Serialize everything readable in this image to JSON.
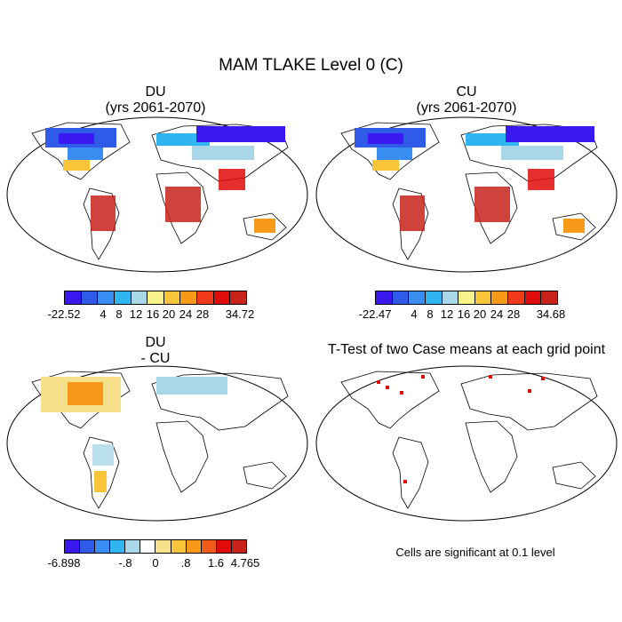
{
  "title": "MAM TLAKE Level 0 (C)",
  "panels": [
    {
      "id": "du",
      "title_line1": "DU",
      "title_line2": "(yrs 2061-2070)",
      "ticks": [
        "-22.52",
        "4",
        "8",
        "12",
        "16",
        "20",
        "24",
        "28",
        "34.72"
      ]
    },
    {
      "id": "cu",
      "title_line1": "CU",
      "title_line2": "(yrs 2061-2070)",
      "ticks": [
        "-22.47",
        "4",
        "8",
        "12",
        "16",
        "20",
        "24",
        "28",
        "34.68"
      ]
    },
    {
      "id": "diff",
      "title_line1": "DU",
      "title_line2": "- CU",
      "ticks": [
        "-6.898",
        "-.8",
        "0",
        ".8",
        "1.6",
        "4.765"
      ]
    },
    {
      "id": "ttest",
      "title_line1": "T-Test of two Case means at each grid point",
      "note": "Cells are significant at 0.1 level"
    }
  ],
  "colorbars": {
    "absolute": [
      "#3a18f0",
      "#2f5be8",
      "#3a8df0",
      "#2fb6f0",
      "#a9d7e8",
      "#f7f28a",
      "#f7c43a",
      "#f79a1a",
      "#f03a1a",
      "#e00b0b",
      "#c8221a"
    ],
    "difference": [
      "#3a18f0",
      "#2f5be8",
      "#3a8df0",
      "#2fb6f0",
      "#a9d7e8",
      "#ffffff",
      "#f7e08a",
      "#f7c43a",
      "#f79a1a",
      "#f05a1a",
      "#e00b0b",
      "#c8221a"
    ]
  }
}
